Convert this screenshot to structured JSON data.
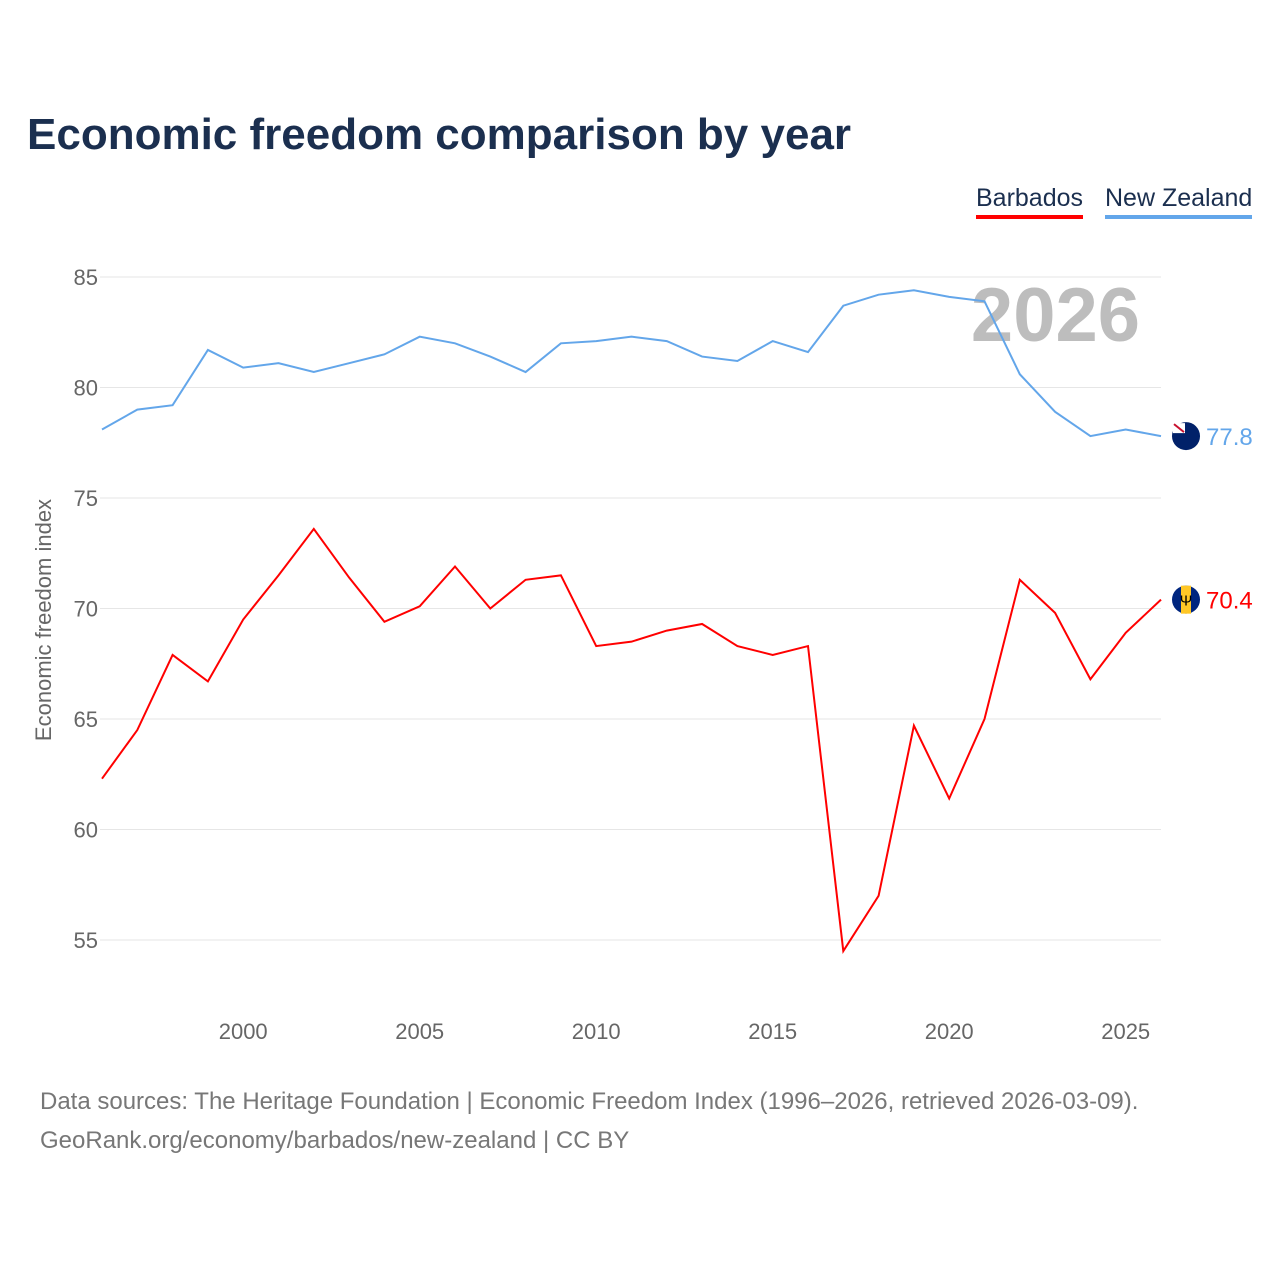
{
  "title": "Economic freedom comparison by year",
  "legend": [
    {
      "label": "Barbados",
      "color": "#ff0000"
    },
    {
      "label": "New Zealand",
      "color": "#63a6ea"
    }
  ],
  "year_watermark": "2026",
  "sources": {
    "line1": "Data sources: The Heritage Foundation | Economic Freedom Index (1996–2026, retrieved 2026-03-09).",
    "line2": "GeoRank.org/economy/barbados/new-zealand | CC BY"
  },
  "chart_data": {
    "type": "line",
    "title": "Economic freedom comparison by year",
    "xlabel": "",
    "ylabel": "Economic freedom index",
    "xlim": [
      1996,
      2026
    ],
    "ylim": [
      52.5,
      86.5
    ],
    "grid": true,
    "legend_position": "top-right",
    "x_ticks": [
      "2000",
      "2005",
      "2010",
      "2015",
      "2020",
      "2025"
    ],
    "y_ticks": [
      "55",
      "60",
      "65",
      "70",
      "75",
      "80",
      "85"
    ],
    "x": [
      1996,
      1997,
      1998,
      1999,
      2000,
      2001,
      2002,
      2003,
      2004,
      2005,
      2006,
      2007,
      2008,
      2009,
      2010,
      2011,
      2012,
      2013,
      2014,
      2015,
      2016,
      2017,
      2018,
      2019,
      2020,
      2021,
      2022,
      2023,
      2024,
      2025,
      2026
    ],
    "series": [
      {
        "name": "Barbados",
        "color": "#ff0000",
        "end_label": "70.4",
        "values": [
          62.3,
          64.5,
          67.9,
          66.7,
          69.5,
          71.5,
          73.6,
          71.4,
          69.4,
          70.1,
          71.9,
          70.0,
          71.3,
          71.5,
          68.3,
          68.5,
          69.0,
          69.3,
          68.3,
          67.9,
          68.3,
          54.5,
          57.0,
          64.7,
          61.4,
          65.0,
          71.3,
          69.8,
          66.8,
          68.9,
          70.4
        ]
      },
      {
        "name": "New Zealand",
        "color": "#63a6ea",
        "end_label": "77.8",
        "values": [
          78.1,
          79.0,
          79.2,
          81.7,
          80.9,
          81.1,
          80.7,
          81.1,
          81.5,
          82.3,
          82.0,
          81.4,
          80.7,
          82.0,
          82.1,
          82.3,
          82.1,
          81.4,
          81.2,
          82.1,
          81.6,
          83.7,
          84.2,
          84.4,
          84.1,
          83.9,
          80.6,
          78.9,
          77.8,
          78.1,
          77.8
        ]
      }
    ]
  }
}
